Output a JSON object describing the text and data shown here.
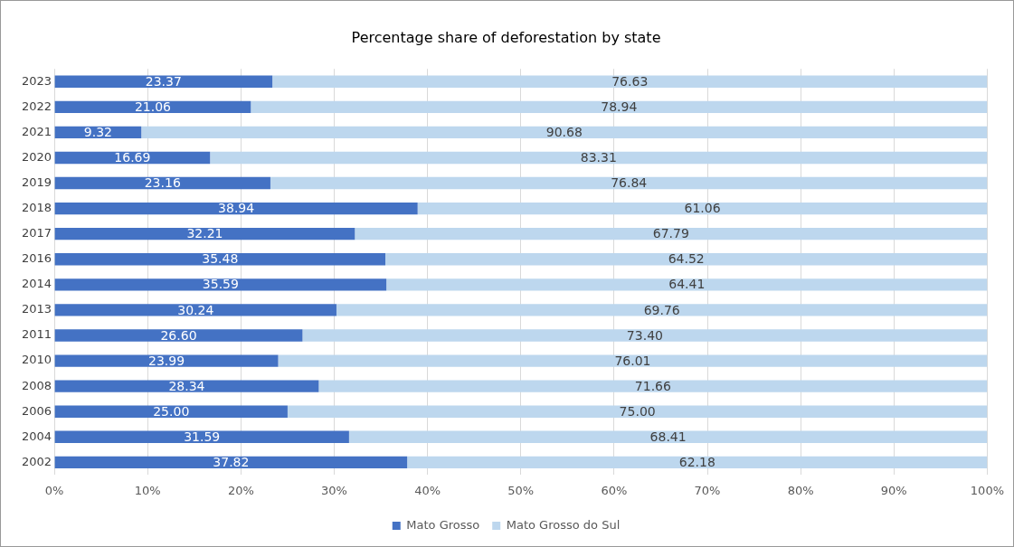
{
  "chart_data": {
    "type": "bar",
    "orientation": "horizontal",
    "stacked": true,
    "title": "Percentage share of deforestation by state",
    "categories": [
      "2023",
      "2022",
      "2021",
      "2020",
      "2019",
      "2018",
      "2017",
      "2016",
      "2014",
      "2013",
      "2011",
      "2010",
      "2008",
      "2006",
      "2004",
      "2002"
    ],
    "series": [
      {
        "name": "Mato Grosso",
        "color": "#4472c4",
        "values": [
          23.37,
          21.06,
          9.32,
          16.69,
          23.16,
          38.94,
          32.21,
          35.48,
          35.59,
          30.24,
          26.6,
          23.99,
          28.34,
          25,
          31.59,
          37.82
        ],
        "value_labels": [
          "23.37",
          "21.06",
          "9.32",
          "16.69",
          "23.16",
          "38.94",
          "32.21",
          "35.48",
          "35.59",
          "30.24",
          "26.60",
          "23.99",
          "28.34",
          "25.00",
          "31.59",
          "37.82"
        ]
      },
      {
        "name": "Mato Grosso do Sul",
        "color": "#bdd7ee",
        "values": [
          76.63,
          78.94,
          90.68,
          83.31,
          76.84,
          61.06,
          67.79,
          64.52,
          64.41,
          69.76,
          73.4,
          76.01,
          71.66,
          75,
          68.41,
          62.18
        ],
        "value_labels": [
          "76.63",
          "78.94",
          "90.68",
          "83.31",
          "76.84",
          "61.06",
          "67.79",
          "64.52",
          "64.41",
          "69.76",
          "73.40",
          "76.01",
          "71.66",
          "75.00",
          "68.41",
          "62.18"
        ]
      }
    ],
    "xlim": [
      0,
      100
    ],
    "xticks": [
      {
        "value": 0,
        "label": "0%"
      },
      {
        "value": 10,
        "label": "10%"
      },
      {
        "value": 20,
        "label": "20%"
      },
      {
        "value": 30,
        "label": "30%"
      },
      {
        "value": 40,
        "label": "40%"
      },
      {
        "value": 50,
        "label": "50%"
      },
      {
        "value": 60,
        "label": "60%"
      },
      {
        "value": 70,
        "label": "70%"
      },
      {
        "value": 80,
        "label": "80%"
      },
      {
        "value": 90,
        "label": "90%"
      },
      {
        "value": 100,
        "label": "100%"
      }
    ],
    "grid": "x",
    "legend": "bottom"
  }
}
